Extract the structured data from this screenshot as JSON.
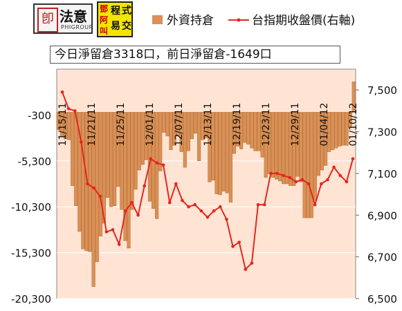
{
  "logos": {
    "left_name": "法意",
    "left_sub": "PHIGROUP",
    "right_text": [
      "鄧",
      "阿",
      "叫",
      "程",
      "式",
      "易",
      "交"
    ]
  },
  "chart_data": {
    "type": "bar",
    "title": "今日淨留倉3318口，前日淨留倉-1649口",
    "series": [
      {
        "name": "外資持倉",
        "axis": "left",
        "color": "#d99157",
        "values": [
          -1900,
          -2700,
          -2900,
          -3000,
          -8000,
          -10200,
          -13000,
          -14900,
          -15100,
          -15200,
          -19000,
          -16300,
          -13500,
          -12100,
          -9300,
          -10300,
          -10200,
          -8100,
          -10600,
          -14000,
          -14800,
          -10600,
          -8400,
          -6300,
          -5700,
          -5200,
          -9700,
          -10500,
          -11600,
          -6400,
          -2200,
          -2600,
          -4100,
          -3600,
          -2600,
          -4300,
          -6000,
          -4200,
          -2900,
          -2300,
          -5300,
          -3000,
          -2800,
          -7600,
          -7400,
          -8900,
          -9000,
          -8600,
          -8800,
          -9800,
          -4500,
          -3700,
          -4000,
          -3300,
          -3500,
          -3900,
          -4200,
          -4200,
          -4900,
          -7100,
          -6700,
          -7100,
          -7300,
          -7500,
          -7800,
          -7800,
          -8000,
          -8000,
          -7000,
          -7600,
          -11500,
          -11500,
          -11500,
          -9600,
          -6900,
          -6300,
          -5800,
          -4300,
          -4100,
          -3900,
          -3700,
          -3600,
          -3600,
          -1649,
          3318
        ]
      },
      {
        "name": "台指期收盤價(右軸)",
        "axis": "right",
        "color": "#e8241c",
        "values": [
          7490,
          7410,
          7400,
          7250,
          7050,
          7030,
          6990,
          6820,
          6830,
          6760,
          6920,
          6960,
          6900,
          7040,
          7170,
          7150,
          7140,
          6960,
          7050,
          6970,
          6940,
          6950,
          6920,
          6890,
          6920,
          6940,
          6880,
          6750,
          6770,
          6640,
          6670,
          6950,
          6950,
          7100,
          7100,
          7090,
          7080,
          7060,
          7070,
          7050,
          6950,
          7050,
          7070,
          7130,
          7090,
          7060,
          7170
        ]
      }
    ],
    "tick_labels": [
      "11/15/11",
      "11/21/11",
      "11/25/11",
      "12/01/11",
      "12/07/11",
      "12/13/11",
      "12/19/11",
      "12/23/11",
      "12/29/11",
      "01/04/12",
      "01/10/12"
    ],
    "y_left": {
      "ticks": [
        "-300",
        "-5,300",
        "-10,300",
        "-15,300",
        "-20,300"
      ],
      "range": [
        -20300,
        4700
      ]
    },
    "y_right": {
      "ticks": [
        "7,500",
        "7,300",
        "7,100",
        "6,900",
        "6,700",
        "6,500"
      ],
      "range": [
        6500,
        7600
      ]
    },
    "xlabel": "",
    "ylabel": "",
    "legend": "top"
  }
}
